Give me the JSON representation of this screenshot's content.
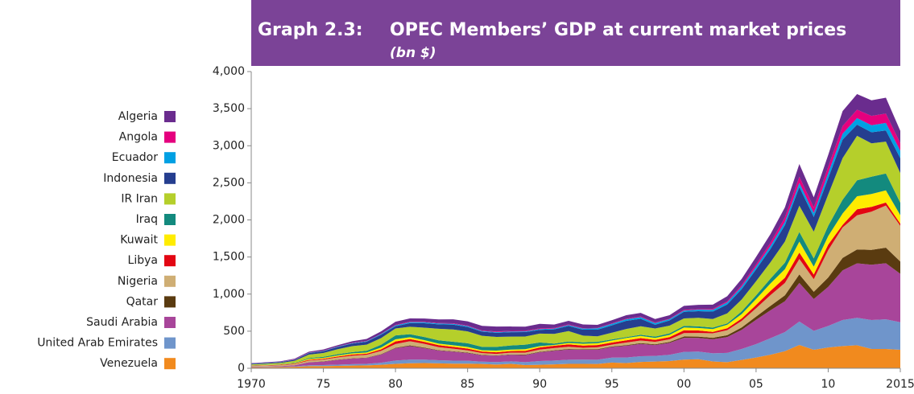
{
  "chart_data": {
    "type": "stacked_area",
    "title_label": "Graph 2.3:",
    "title": "OPEC Members’ GDP at current market prices",
    "subtitle": "(bn $)",
    "x": [
      1970,
      1971,
      1972,
      1973,
      1974,
      1975,
      1976,
      1977,
      1978,
      1979,
      1980,
      1981,
      1982,
      1983,
      1984,
      1985,
      1986,
      1987,
      1988,
      1989,
      1990,
      1991,
      1992,
      1993,
      1994,
      1995,
      1996,
      1997,
      1998,
      1999,
      2000,
      2001,
      2002,
      2003,
      2004,
      2005,
      2006,
      2007,
      2008,
      2009,
      2010,
      2011,
      2012,
      2013,
      2014,
      2015
    ],
    "xlim": [
      1970,
      2015
    ],
    "xticks": [
      {
        "value": 1970,
        "label": "1970"
      },
      {
        "value": 1975,
        "label": "75"
      },
      {
        "value": 1980,
        "label": "80"
      },
      {
        "value": 1985,
        "label": "85"
      },
      {
        "value": 1990,
        "label": "90"
      },
      {
        "value": 1995,
        "label": "95"
      },
      {
        "value": 2000,
        "label": "00"
      },
      {
        "value": 2005,
        "label": "05"
      },
      {
        "value": 2010,
        "label": "10"
      },
      {
        "value": 2015,
        "label": "2015"
      }
    ],
    "ylim": [
      0,
      4000
    ],
    "yticks": [
      0,
      500,
      {
        "value": 1000,
        "label": "1,000"
      },
      {
        "value": 1500,
        "label": "1,500"
      },
      {
        "value": 2000,
        "label": "2,000"
      },
      {
        "value": 2500,
        "label": "2,500"
      },
      {
        "value": 3000,
        "label": "3,000"
      },
      {
        "value": 3500,
        "label": "3,500"
      },
      {
        "value": 4000,
        "label": "4,000"
      }
    ],
    "series": [
      {
        "name": "Algeria",
        "color": "#6a2c8e",
        "values": [
          5,
          5,
          7,
          9,
          13,
          15,
          17,
          21,
          26,
          33,
          42,
          44,
          45,
          48,
          53,
          57,
          62,
          66,
          59,
          55,
          61,
          46,
          49,
          50,
          42,
          42,
          47,
          48,
          48,
          48,
          55,
          55,
          57,
          68,
          85,
          103,
          117,
          135,
          171,
          137,
          161,
          200,
          209,
          210,
          214,
          165
        ]
      },
      {
        "name": "Angola",
        "color": "#e5007e",
        "values": [
          2,
          2,
          2,
          3,
          3,
          3,
          3,
          4,
          4,
          4,
          6,
          6,
          6,
          6,
          7,
          7,
          7,
          8,
          8,
          9,
          10,
          9,
          8,
          6,
          5,
          6,
          7,
          8,
          6,
          6,
          9,
          9,
          12,
          14,
          20,
          28,
          42,
          60,
          85,
          75,
          83,
          104,
          115,
          125,
          126,
          103
        ]
      },
      {
        "name": "Ecuador",
        "color": "#00a0e3",
        "values": [
          2,
          2,
          2,
          3,
          4,
          4,
          5,
          6,
          7,
          8,
          12,
          13,
          13,
          12,
          12,
          12,
          10,
          10,
          9,
          9,
          10,
          11,
          12,
          15,
          18,
          20,
          21,
          24,
          23,
          17,
          16,
          21,
          25,
          29,
          33,
          37,
          41,
          46,
          55,
          52,
          70,
          80,
          88,
          95,
          102,
          100
        ]
      },
      {
        "name": "Indonesia",
        "color": "#253e8f",
        "values": [
          9,
          10,
          11,
          14,
          20,
          25,
          30,
          35,
          40,
          45,
          30,
          50,
          60,
          60,
          65,
          60,
          55,
          55,
          60,
          60,
          50,
          60,
          70,
          80,
          90,
          100,
          110,
          100,
          50,
          70,
          90,
          90,
          100,
          120,
          140,
          160,
          180,
          220,
          250,
          200,
          220,
          250,
          150,
          150,
          150,
          200
        ]
      },
      {
        "name": "IR Iran",
        "color": "#b5cf2b",
        "values": [
          10,
          13,
          17,
          28,
          46,
          52,
          68,
          80,
          82,
          90,
          94,
          100,
          125,
          155,
          165,
          160,
          150,
          135,
          120,
          110,
          120,
          130,
          140,
          90,
          75,
          90,
          110,
          115,
          110,
          105,
          100,
          115,
          115,
          135,
          160,
          190,
          220,
          285,
          355,
          360,
          422,
          560,
          600,
          450,
          430,
          400
        ]
      },
      {
        "name": "Iraq",
        "color": "#138a7e",
        "values": [
          3,
          4,
          4,
          5,
          11,
          13,
          16,
          18,
          23,
          38,
          53,
          40,
          43,
          45,
          48,
          50,
          45,
          50,
          55,
          60,
          50,
          20,
          20,
          20,
          18,
          15,
          12,
          15,
          18,
          20,
          22,
          21,
          20,
          18,
          36,
          50,
          65,
          88,
          131,
          111,
          138,
          186,
          216,
          232,
          228,
          168
        ]
      },
      {
        "name": "Kuwait",
        "color": "#ffec00",
        "values": [
          3,
          4,
          4,
          5,
          13,
          12,
          14,
          15,
          16,
          24,
          28,
          25,
          22,
          21,
          21,
          21,
          18,
          22,
          20,
          24,
          18,
          11,
          19,
          24,
          25,
          27,
          31,
          30,
          25,
          30,
          38,
          35,
          38,
          48,
          60,
          80,
          101,
          115,
          147,
          106,
          115,
          154,
          174,
          174,
          163,
          114
        ]
      },
      {
        "name": "Libya",
        "color": "#e30613",
        "values": [
          4,
          5,
          5,
          6,
          10,
          11,
          13,
          15,
          16,
          21,
          35,
          30,
          28,
          27,
          25,
          25,
          20,
          22,
          20,
          22,
          28,
          30,
          32,
          30,
          30,
          28,
          30,
          32,
          28,
          30,
          38,
          34,
          20,
          26,
          33,
          44,
          56,
          71,
          87,
          63,
          75,
          34,
          82,
          65,
          41,
          30
        ]
      },
      {
        "name": "Nigeria",
        "color": "#cfae74",
        "values": [
          10,
          12,
          13,
          15,
          22,
          25,
          30,
          36,
          38,
          45,
          50,
          55,
          50,
          40,
          35,
          30,
          25,
          20,
          25,
          28,
          30,
          30,
          30,
          20,
          25,
          25,
          35,
          35,
          33,
          35,
          46,
          48,
          60,
          67,
          88,
          112,
          145,
          166,
          208,
          170,
          369,
          411,
          460,
          515,
          568,
          481
        ]
      },
      {
        "name": "Qatar",
        "color": "#5a3b10",
        "values": [
          1,
          1,
          1,
          1,
          2,
          3,
          3,
          4,
          4,
          5,
          8,
          9,
          8,
          6,
          6,
          6,
          5,
          5,
          5,
          6,
          7,
          7,
          8,
          7,
          8,
          8,
          9,
          11,
          10,
          12,
          18,
          18,
          20,
          24,
          32,
          44,
          60,
          80,
          115,
          98,
          125,
          168,
          187,
          200,
          210,
          165
        ]
      },
      {
        "name": "Saudi Arabia",
        "color": "#a8459a",
        "values": [
          5,
          6,
          8,
          14,
          40,
          46,
          64,
          75,
          80,
          110,
          165,
          184,
          155,
          130,
          120,
          103,
          86,
          85,
          88,
          95,
          117,
          132,
          137,
          133,
          135,
          143,
          158,
          165,
          146,
          161,
          189,
          184,
          189,
          215,
          258,
          328,
          377,
          416,
          520,
          429,
          528,
          670,
          735,
          746,
          756,
          654
        ]
      },
      {
        "name": "United Arab Emirates",
        "color": "#6f95cb",
        "values": [
          2,
          3,
          4,
          6,
          12,
          14,
          16,
          19,
          20,
          26,
          44,
          48,
          46,
          42,
          41,
          40,
          31,
          34,
          34,
          39,
          50,
          51,
          55,
          56,
          57,
          66,
          75,
          78,
          76,
          84,
          104,
          103,
          110,
          124,
          148,
          180,
          222,
          258,
          315,
          254,
          290,
          350,
          370,
          390,
          400,
          370
        ]
      },
      {
        "name": "Venezuela",
        "color": "#f18a1e",
        "values": [
          13,
          14,
          16,
          20,
          28,
          30,
          33,
          36,
          39,
          48,
          60,
          68,
          70,
          66,
          62,
          62,
          58,
          50,
          60,
          44,
          48,
          53,
          60,
          60,
          58,
          77,
          70,
          85,
          91,
          98,
          117,
          122,
          92,
          83,
          112,
          145,
          183,
          230,
          315,
          250,
          280,
          300,
          310,
          260,
          260,
          250
        ]
      }
    ]
  }
}
